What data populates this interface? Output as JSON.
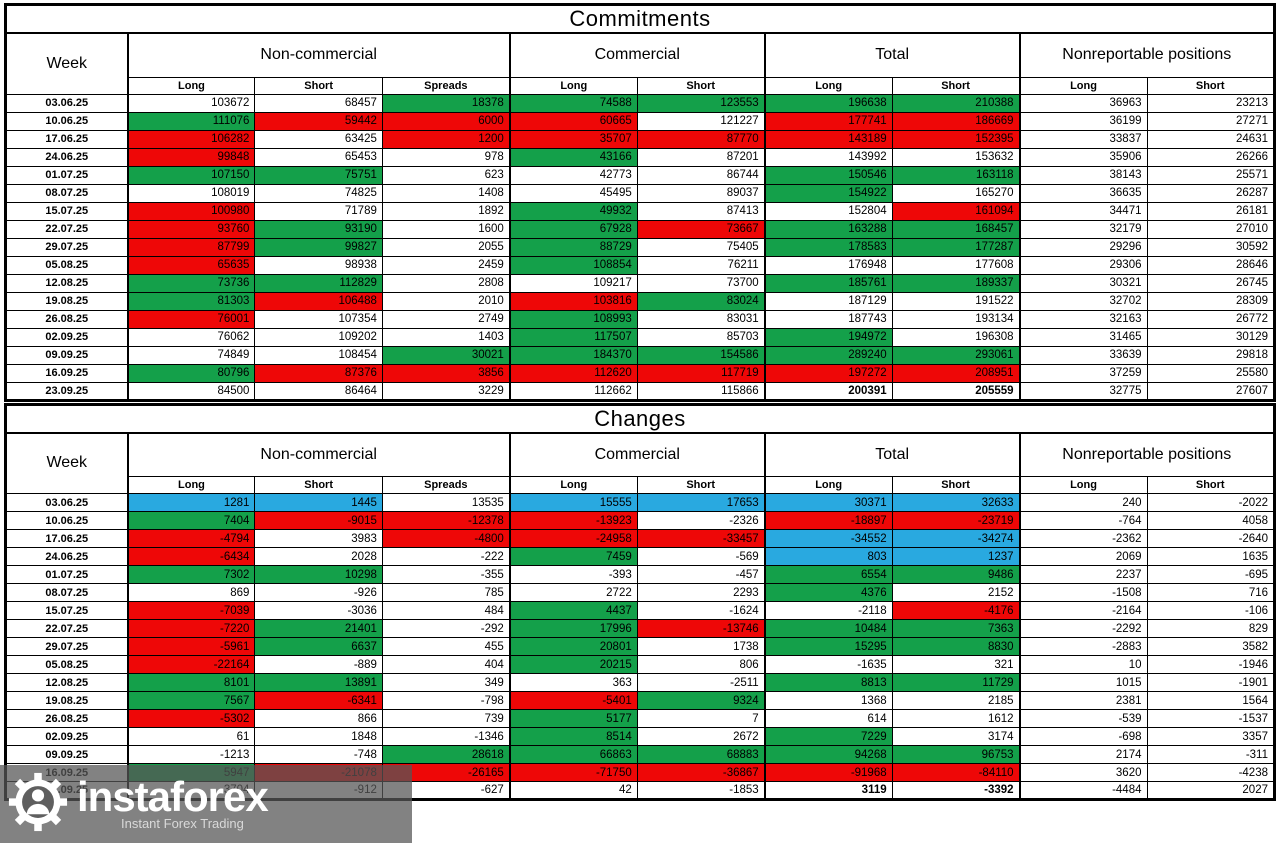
{
  "colors": {
    "w": "#ffffff",
    "g": "#14a04a",
    "r": "#ee0707",
    "b": "#29a9e0"
  },
  "watermark": {
    "brand": "instaforex",
    "tagline": "Instant Forex Trading"
  },
  "tables": [
    {
      "title": "Commitments",
      "week_label": "Week",
      "groups": [
        {
          "label": "Non-commercial",
          "subs": [
            "Long",
            "Short",
            "Spreads"
          ]
        },
        {
          "label": "Commercial",
          "subs": [
            "Long",
            "Short"
          ]
        },
        {
          "label": "Total",
          "subs": [
            "Long",
            "Short"
          ]
        },
        {
          "label": "Nonreportable positions",
          "subs": [
            "Long",
            "Short"
          ]
        }
      ],
      "rows": [
        {
          "week": "03.06.25",
          "values": [
            "103672",
            "68457",
            "18378",
            "74588",
            "123553",
            "196638",
            "210388",
            "36963",
            "23213"
          ],
          "colors": "wwgggggww"
        },
        {
          "week": "10.06.25",
          "values": [
            "111076",
            "59442",
            "6000",
            "60665",
            "121227",
            "177741",
            "186669",
            "36199",
            "27271"
          ],
          "colors": "grrrwrrww"
        },
        {
          "week": "17.06.25",
          "values": [
            "106282",
            "63425",
            "1200",
            "35707",
            "87770",
            "143189",
            "152395",
            "33837",
            "24631"
          ],
          "colors": "rwrrrrrww"
        },
        {
          "week": "24.06.25",
          "values": [
            "99848",
            "65453",
            "978",
            "43166",
            "87201",
            "143992",
            "153632",
            "35906",
            "26266"
          ],
          "colors": "rwwgwwwww"
        },
        {
          "week": "01.07.25",
          "values": [
            "107150",
            "75751",
            "623",
            "42773",
            "86744",
            "150546",
            "163118",
            "38143",
            "25571"
          ],
          "colors": "ggwwwggww"
        },
        {
          "week": "08.07.25",
          "values": [
            "108019",
            "74825",
            "1408",
            "45495",
            "89037",
            "154922",
            "165270",
            "36635",
            "26287"
          ],
          "colors": "wwwwwgwww"
        },
        {
          "week": "15.07.25",
          "values": [
            "100980",
            "71789",
            "1892",
            "49932",
            "87413",
            "152804",
            "161094",
            "34471",
            "26181"
          ],
          "colors": "rwwgwwrww"
        },
        {
          "week": "22.07.25",
          "values": [
            "93760",
            "93190",
            "1600",
            "67928",
            "73667",
            "163288",
            "168457",
            "32179",
            "27010"
          ],
          "colors": "rgwgrggww"
        },
        {
          "week": "29.07.25",
          "values": [
            "87799",
            "99827",
            "2055",
            "88729",
            "75405",
            "178583",
            "177287",
            "29296",
            "30592"
          ],
          "colors": "rgwgwggww"
        },
        {
          "week": "05.08.25",
          "values": [
            "65635",
            "98938",
            "2459",
            "108854",
            "76211",
            "176948",
            "177608",
            "29306",
            "28646"
          ],
          "colors": "rwwgwwwww"
        },
        {
          "week": "12.08.25",
          "values": [
            "73736",
            "112829",
            "2808",
            "109217",
            "73700",
            "185761",
            "189337",
            "30321",
            "26745"
          ],
          "colors": "ggwwwggww"
        },
        {
          "week": "19.08.25",
          "values": [
            "81303",
            "106488",
            "2010",
            "103816",
            "83024",
            "187129",
            "191522",
            "32702",
            "28309"
          ],
          "colors": "grwrgwwww"
        },
        {
          "week": "26.08.25",
          "values": [
            "76001",
            "107354",
            "2749",
            "108993",
            "83031",
            "187743",
            "193134",
            "32163",
            "26772"
          ],
          "colors": "rwwgwwwww"
        },
        {
          "week": "02.09.25",
          "values": [
            "76062",
            "109202",
            "1403",
            "117507",
            "85703",
            "194972",
            "196308",
            "31465",
            "30129"
          ],
          "colors": "wwwgwgwww"
        },
        {
          "week": "09.09.25",
          "values": [
            "74849",
            "108454",
            "30021",
            "184370",
            "154586",
            "289240",
            "293061",
            "33639",
            "29818"
          ],
          "colors": "wwgggggww"
        },
        {
          "week": "16.09.25",
          "values": [
            "80796",
            "87376",
            "3856",
            "112620",
            "117719",
            "197272",
            "208951",
            "37259",
            "25580"
          ],
          "colors": "grrrrrrww"
        },
        {
          "week": "23.09.25",
          "values": [
            "84500",
            "86464",
            "3229",
            "112662",
            "115866",
            "200391",
            "205559",
            "32775",
            "27607"
          ],
          "colors": "wwwwwwwww",
          "bold": [
            5,
            6
          ]
        }
      ]
    },
    {
      "title": "Changes",
      "week_label": "Week",
      "groups": [
        {
          "label": "Non-commercial",
          "subs": [
            "Long",
            "Short",
            "Spreads"
          ]
        },
        {
          "label": "Commercial",
          "subs": [
            "Long",
            "Short"
          ]
        },
        {
          "label": "Total",
          "subs": [
            "Long",
            "Short"
          ]
        },
        {
          "label": "Nonreportable positions",
          "subs": [
            "Long",
            "Short"
          ]
        }
      ],
      "rows": [
        {
          "week": "03.06.25",
          "values": [
            "1281",
            "1445",
            "13535",
            "15555",
            "17653",
            "30371",
            "32633",
            "240",
            "-2022"
          ],
          "colors": "bbwbbbbww"
        },
        {
          "week": "10.06.25",
          "values": [
            "7404",
            "-9015",
            "-12378",
            "-13923",
            "-2326",
            "-18897",
            "-23719",
            "-764",
            "4058"
          ],
          "colors": "grrrwrrww"
        },
        {
          "week": "17.06.25",
          "values": [
            "-4794",
            "3983",
            "-4800",
            "-24958",
            "-33457",
            "-34552",
            "-34274",
            "-2362",
            "-2640"
          ],
          "colors": "rwrrrbbww"
        },
        {
          "week": "24.06.25",
          "values": [
            "-6434",
            "2028",
            "-222",
            "7459",
            "-569",
            "803",
            "1237",
            "2069",
            "1635"
          ],
          "colors": "rwwgwbbww"
        },
        {
          "week": "01.07.25",
          "values": [
            "7302",
            "10298",
            "-355",
            "-393",
            "-457",
            "6554",
            "9486",
            "2237",
            "-695"
          ],
          "colors": "ggwwwggww"
        },
        {
          "week": "08.07.25",
          "values": [
            "869",
            "-926",
            "785",
            "2722",
            "2293",
            "4376",
            "2152",
            "-1508",
            "716"
          ],
          "colors": "wwwwwgwww"
        },
        {
          "week": "15.07.25",
          "values": [
            "-7039",
            "-3036",
            "484",
            "4437",
            "-1624",
            "-2118",
            "-4176",
            "-2164",
            "-106"
          ],
          "colors": "rwwgwwrww"
        },
        {
          "week": "22.07.25",
          "values": [
            "-7220",
            "21401",
            "-292",
            "17996",
            "-13746",
            "10484",
            "7363",
            "-2292",
            "829"
          ],
          "colors": "rgwgrggww"
        },
        {
          "week": "29.07.25",
          "values": [
            "-5961",
            "6637",
            "455",
            "20801",
            "1738",
            "15295",
            "8830",
            "-2883",
            "3582"
          ],
          "colors": "rgwgwggww"
        },
        {
          "week": "05.08.25",
          "values": [
            "-22164",
            "-889",
            "404",
            "20215",
            "806",
            "-1635",
            "321",
            "10",
            "-1946"
          ],
          "colors": "rwwgwwwww"
        },
        {
          "week": "12.08.25",
          "values": [
            "8101",
            "13891",
            "349",
            "363",
            "-2511",
            "8813",
            "11729",
            "1015",
            "-1901"
          ],
          "colors": "ggwwwggww"
        },
        {
          "week": "19.08.25",
          "values": [
            "7567",
            "-6341",
            "-798",
            "-5401",
            "9324",
            "1368",
            "2185",
            "2381",
            "1564"
          ],
          "colors": "grwrgwwww"
        },
        {
          "week": "26.08.25",
          "values": [
            "-5302",
            "866",
            "739",
            "5177",
            "7",
            "614",
            "1612",
            "-539",
            "-1537"
          ],
          "colors": "rwwgwwwww"
        },
        {
          "week": "02.09.25",
          "values": [
            "61",
            "1848",
            "-1346",
            "8514",
            "2672",
            "7229",
            "3174",
            "-698",
            "3357"
          ],
          "colors": "wwwgwgwww"
        },
        {
          "week": "09.09.25",
          "values": [
            "-1213",
            "-748",
            "28618",
            "66863",
            "68883",
            "94268",
            "96753",
            "2174",
            "-311"
          ],
          "colors": "wwgggggww"
        },
        {
          "week": "16.09.25",
          "values": [
            "5947",
            "-21078",
            "-26165",
            "-71750",
            "-36867",
            "-91968",
            "-84110",
            "3620",
            "-4238"
          ],
          "colors": "grrrrrrww"
        },
        {
          "week": "23.09.25",
          "values": [
            "3704",
            "-912",
            "-627",
            "42",
            "-1853",
            "3119",
            "-3392",
            "-4484",
            "2027"
          ],
          "colors": "wwwwwwwww",
          "bold": [
            5,
            6
          ]
        }
      ]
    }
  ]
}
